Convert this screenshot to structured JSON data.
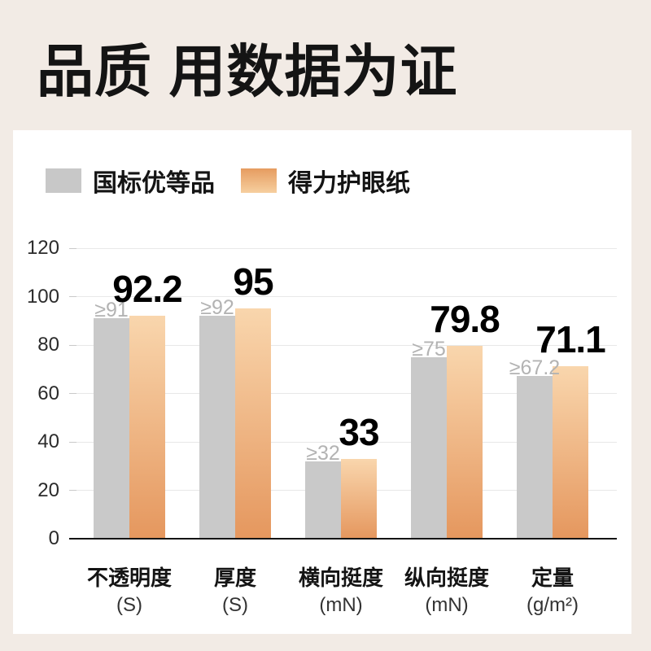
{
  "title": "品质 用数据为证",
  "legend": [
    {
      "label": "国标优等品",
      "swatch": "gray"
    },
    {
      "label": "得力护眼纸",
      "swatch": "orange"
    }
  ],
  "colors": {
    "background": "#f2ebe5",
    "panel": "#ffffff",
    "gray_bar": "#c9c9c9",
    "gray_value_label": "#b3b3b3",
    "orange_bar_top": "#f9d6ad",
    "orange_bar_bottom": "#e5975e",
    "legend_orange_top": "#e69c60",
    "legend_orange_bottom": "#f6cf9f",
    "gridline": "#e8e8e8",
    "axis": "#141414",
    "text": "#141414"
  },
  "chart_data": {
    "type": "bar",
    "title": "品质 用数据为证",
    "categories": [
      "不透明度",
      "厚度",
      "横向挺度",
      "纵向挺度",
      "定量"
    ],
    "category_units": [
      "(S)",
      "(S)",
      "(mN)",
      "(mN)",
      "(g/m²)"
    ],
    "series": [
      {
        "name": "国标优等品",
        "values": [
          91,
          92,
          32,
          75,
          67.2
        ],
        "value_labels": [
          "≥91",
          "≥92",
          "≥32",
          "≥75",
          "≥67.2"
        ]
      },
      {
        "name": "得力护眼纸",
        "values": [
          92.2,
          95,
          33,
          79.8,
          71.1
        ],
        "value_labels": [
          "92.2",
          "95",
          "33",
          "79.8",
          "71.1"
        ]
      }
    ],
    "ylim": [
      0,
      120
    ],
    "yticks": [
      0,
      20,
      40,
      60,
      80,
      100,
      120
    ],
    "grid": true,
    "legend_position": "top-left"
  }
}
